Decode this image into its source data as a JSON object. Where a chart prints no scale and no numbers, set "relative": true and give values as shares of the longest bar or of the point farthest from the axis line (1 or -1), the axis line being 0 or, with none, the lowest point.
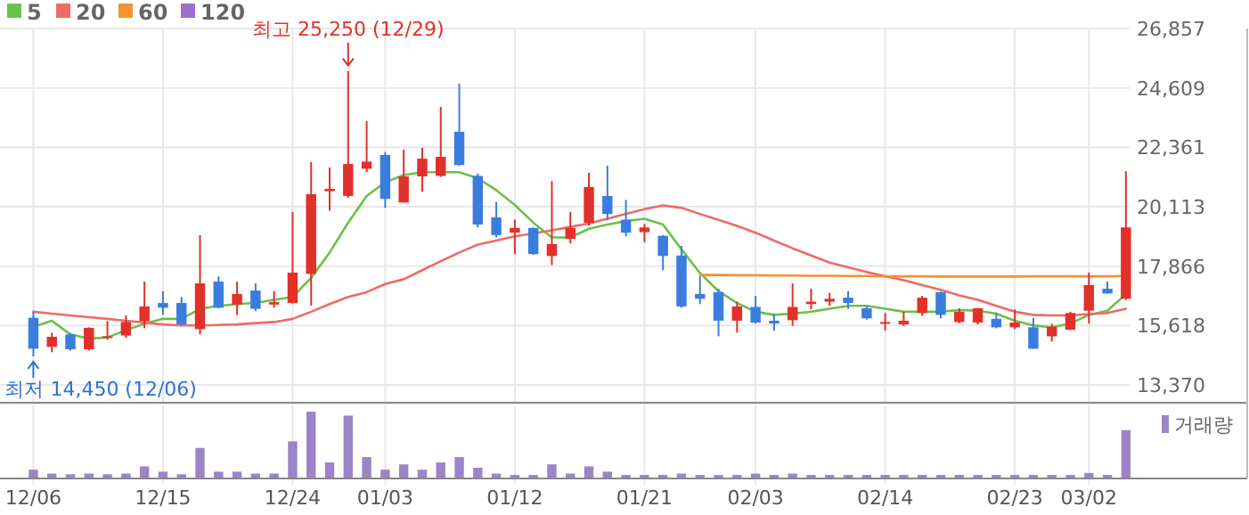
{
  "chart_data": [
    {
      "type": "candlestick",
      "categories": [
        "12/06",
        null,
        null,
        null,
        null,
        null,
        null,
        "12/15",
        null,
        null,
        null,
        null,
        null,
        null,
        "12/24",
        null,
        null,
        null,
        null,
        "01/03",
        null,
        null,
        null,
        null,
        null,
        null,
        "01/12",
        null,
        null,
        null,
        null,
        null,
        null,
        "01/21",
        null,
        null,
        null,
        null,
        null,
        "02/03",
        null,
        null,
        null,
        null,
        null,
        null,
        "02/14",
        null,
        null,
        null,
        null,
        null,
        null,
        "02/23",
        null,
        null,
        null,
        "03/02",
        null,
        null
      ],
      "ohlc": [
        [
          15910,
          16140,
          14450,
          14740
        ],
        [
          14810,
          15350,
          14610,
          15190
        ],
        [
          15280,
          15330,
          14670,
          14720
        ],
        [
          14720,
          15550,
          14670,
          15530
        ],
        [
          15170,
          15780,
          15080,
          15210
        ],
        [
          15240,
          16000,
          15150,
          15750
        ],
        [
          15780,
          17280,
          15510,
          16340
        ],
        [
          16470,
          16920,
          16020,
          16290
        ],
        [
          16470,
          16700,
          15620,
          15660
        ],
        [
          15480,
          19040,
          15280,
          17210
        ],
        [
          17280,
          17480,
          16270,
          16290
        ],
        [
          16410,
          17280,
          16020,
          16810
        ],
        [
          16940,
          17210,
          16160,
          16250
        ],
        [
          16410,
          16920,
          16290,
          16500
        ],
        [
          16470,
          19910,
          16450,
          17620
        ],
        [
          17570,
          21800,
          16370,
          20590
        ],
        [
          20700,
          21600,
          19960,
          20790
        ],
        [
          20520,
          25250,
          20450,
          21730
        ],
        [
          21550,
          23350,
          21420,
          21820
        ],
        [
          22070,
          22180,
          20070,
          20410
        ],
        [
          20270,
          22270,
          20270,
          21260
        ],
        [
          21260,
          22340,
          20680,
          21930
        ],
        [
          21280,
          23890,
          21240,
          22000
        ],
        [
          22950,
          24770,
          21670,
          21690
        ],
        [
          21280,
          21370,
          19330,
          19440
        ],
        [
          19710,
          20290,
          18950,
          19040
        ],
        [
          19130,
          19620,
          18320,
          19310
        ],
        [
          19310,
          19330,
          18290,
          18320
        ],
        [
          18250,
          21080,
          17910,
          18700
        ],
        [
          18900,
          19910,
          18720,
          19310
        ],
        [
          19510,
          21400,
          19400,
          20860
        ],
        [
          20520,
          21670,
          19600,
          19840
        ],
        [
          19620,
          20380,
          18990,
          19130
        ],
        [
          19150,
          19460,
          18770,
          19330
        ],
        [
          19010,
          19040,
          17710,
          18250
        ],
        [
          18270,
          18630,
          16290,
          16340
        ],
        [
          16810,
          17480,
          16430,
          16630
        ],
        [
          16880,
          17010,
          15210,
          15800
        ],
        [
          15800,
          16520,
          15350,
          16340
        ],
        [
          16320,
          16740,
          15690,
          15730
        ],
        [
          15800,
          16070,
          15420,
          15690
        ],
        [
          15820,
          17210,
          15600,
          16320
        ],
        [
          16430,
          17010,
          16230,
          16520
        ],
        [
          16520,
          16850,
          16360,
          16630
        ],
        [
          16670,
          16920,
          16250,
          16470
        ],
        [
          16270,
          16360,
          15840,
          15890
        ],
        [
          15710,
          16090,
          15420,
          15750
        ],
        [
          15660,
          16140,
          15600,
          15800
        ],
        [
          16090,
          16740,
          15980,
          16670
        ],
        [
          16880,
          16900,
          15890,
          16020
        ],
        [
          15750,
          16270,
          15710,
          16140
        ],
        [
          15730,
          16290,
          15660,
          16270
        ],
        [
          15870,
          16090,
          15510,
          15550
        ],
        [
          15550,
          16230,
          15480,
          15730
        ],
        [
          15550,
          15910,
          14740,
          14740
        ],
        [
          15210,
          15690,
          15010,
          15570
        ],
        [
          15460,
          16140,
          15440,
          16090
        ],
        [
          16180,
          17620,
          15690,
          17150
        ],
        [
          17010,
          17280,
          16830,
          16830
        ],
        [
          16630,
          21460,
          16590,
          19330
        ]
      ],
      "series": [
        {
          "type": "line",
          "name": "5",
          "color": "#6cc04a",
          "values": [
            15570,
            15800,
            15280,
            15120,
            15170,
            15440,
            15690,
            15870,
            15870,
            16250,
            16360,
            16430,
            16470,
            16590,
            16700,
            17420,
            18380,
            19510,
            20520,
            21040,
            21310,
            21420,
            21420,
            21420,
            21190,
            20740,
            20180,
            19510,
            18950,
            18950,
            19280,
            19440,
            19570,
            19660,
            19440,
            18500,
            17600,
            16920,
            16470,
            16140,
            16020,
            16070,
            16140,
            16250,
            16360,
            16360,
            16250,
            16140,
            16140,
            16140,
            16200,
            16180,
            16070,
            15800,
            15620,
            15550,
            15690,
            16020,
            16180,
            16810
          ]
        },
        {
          "type": "line",
          "name": "20",
          "color": "#ee6a6a",
          "values": [
            16140,
            16070,
            16000,
            15930,
            15870,
            15800,
            15730,
            15660,
            15620,
            15620,
            15640,
            15660,
            15710,
            15750,
            15870,
            16140,
            16430,
            16700,
            16880,
            17190,
            17370,
            17710,
            18050,
            18380,
            18680,
            18830,
            18990,
            19100,
            19220,
            19350,
            19480,
            19660,
            19840,
            20020,
            20160,
            20070,
            19840,
            19620,
            19390,
            19130,
            18830,
            18540,
            18270,
            18000,
            17820,
            17640,
            17480,
            17330,
            17150,
            16970,
            16760,
            16590,
            16360,
            16140,
            16020,
            16000,
            16000,
            16050,
            16090,
            16250
          ]
        },
        {
          "type": "line",
          "name": "60",
          "color": "#f5922f",
          "values": [
            null,
            null,
            null,
            null,
            null,
            null,
            null,
            null,
            null,
            null,
            null,
            null,
            null,
            null,
            null,
            null,
            null,
            null,
            null,
            null,
            null,
            null,
            null,
            null,
            null,
            null,
            null,
            null,
            null,
            null,
            null,
            null,
            null,
            null,
            null,
            null,
            17530,
            17530,
            17520,
            17520,
            17510,
            17510,
            17500,
            17500,
            17490,
            17490,
            17480,
            17480,
            17480,
            17470,
            17470,
            17470,
            17470,
            17470,
            17480,
            17480,
            17480,
            17480,
            17480,
            17490
          ]
        },
        {
          "type": "line",
          "name": "120",
          "color": "#9b6fce",
          "values": [
            null,
            null,
            null,
            null,
            null,
            null,
            null,
            null,
            null,
            null,
            null,
            null,
            null,
            null,
            null,
            null,
            null,
            null,
            null,
            null,
            null,
            null,
            null,
            null,
            null,
            null,
            null,
            null,
            null,
            null,
            null,
            null,
            null,
            null,
            null,
            null,
            null,
            null,
            null,
            null,
            null,
            null,
            null,
            null,
            null,
            null,
            null,
            null,
            null,
            null,
            null,
            null,
            null,
            null,
            null,
            null,
            null,
            null,
            null,
            null
          ]
        }
      ],
      "ylim": [
        13370,
        26857
      ],
      "yticks": [
        {
          "value": 13370,
          "label": "13,370"
        },
        {
          "value": 15618,
          "label": "15,618"
        },
        {
          "value": 17866,
          "label": "17,866"
        },
        {
          "value": 20113,
          "label": "20,113"
        },
        {
          "value": 22361,
          "label": "22,361"
        },
        {
          "value": 24609,
          "label": "24,609"
        },
        {
          "value": 26857,
          "label": "26,857"
        }
      ],
      "grid": true,
      "legend": "top left",
      "tick_labels": "y",
      "annotations": [
        {
          "text": "최고 25,250 (12/29)",
          "y": 25250
        },
        {
          "text": "최저 14,450 (12/06)",
          "x": "12/06",
          "y": 14450
        }
      ]
    },
    {
      "type": "bar",
      "relative": true,
      "categories": [
        "12/06",
        null,
        null,
        null,
        null,
        null,
        null,
        "12/15",
        null,
        null,
        null,
        null,
        null,
        null,
        "12/24",
        null,
        null,
        null,
        null,
        "01/03",
        null,
        null,
        null,
        null,
        null,
        null,
        "01/12",
        null,
        null,
        null,
        null,
        null,
        null,
        "01/21",
        null,
        null,
        null,
        null,
        null,
        "02/03",
        null,
        null,
        null,
        null,
        null,
        null,
        "02/14",
        null,
        null,
        null,
        null,
        null,
        null,
        "02/23",
        null,
        null,
        null,
        "03/02",
        null,
        null
      ],
      "series": [
        {
          "name": "거래량",
          "color": "#9b84c8",
          "values": [
            0.12,
            0.06,
            0.05,
            0.06,
            0.05,
            0.06,
            0.17,
            0.09,
            0.05,
            0.45,
            0.09,
            0.09,
            0.06,
            0.06,
            0.55,
            1,
            0.23,
            0.94,
            0.31,
            0.12,
            0.2,
            0.12,
            0.23,
            0.31,
            0.15,
            0.06,
            0.04,
            0.04,
            0.2,
            0.06,
            0.17,
            0.09,
            0.04,
            0.04,
            0.04,
            0.06,
            0.04,
            0.04,
            0.04,
            0.06,
            0.04,
            0.06,
            0.04,
            0.04,
            0.04,
            0.04,
            0.04,
            0.04,
            0.04,
            0.04,
            0.04,
            0.04,
            0.04,
            0.04,
            0.04,
            0.04,
            0.04,
            0.07,
            0.04,
            0.72
          ]
        }
      ],
      "grid": "x",
      "legend": "top right",
      "tick_labels": "x"
    }
  ]
}
